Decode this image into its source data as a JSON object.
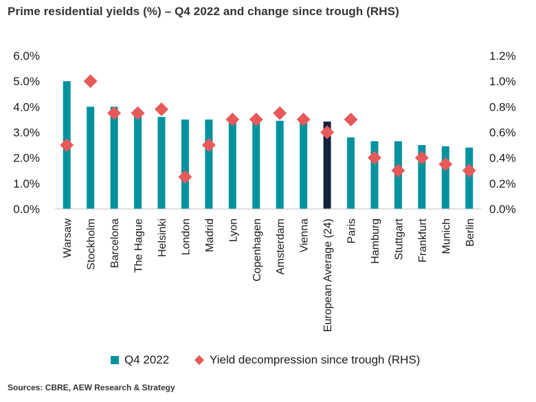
{
  "title": "Prime residential yields (%) – Q4 2022 and change since trough (RHS)",
  "source": "Sources: CBRE, AEW Research & Strategy",
  "colors": {
    "bar": "#00929F",
    "highlight": "#14233D",
    "marker": "#E85A5A"
  },
  "chart_data": {
    "type": "bar",
    "title": "Prime residential yields (%) – Q4 2022 and change since trough (RHS)",
    "categories": [
      "Warsaw",
      "Stockholm",
      "Barcelona",
      "The Hague",
      "Helsinki",
      "London",
      "Madrid",
      "Lyon",
      "Copenhagen",
      "Amsterdam",
      "Vienna",
      "European Average (24)",
      "Paris",
      "Hamburg",
      "Stuttgart",
      "Frankfurt",
      "Munich",
      "Berlin"
    ],
    "highlight_category": "European Average (24)",
    "series": [
      {
        "name": "Q4 2022",
        "type": "bar",
        "axis": "left",
        "values": [
          5.0,
          4.0,
          4.0,
          3.9,
          3.6,
          3.5,
          3.5,
          3.5,
          3.5,
          3.45,
          3.5,
          3.42,
          2.8,
          2.65,
          2.65,
          2.5,
          2.45,
          2.4
        ]
      },
      {
        "name": "Yield decompression since trough (RHS)",
        "type": "scatter",
        "marker": "diamond",
        "axis": "right",
        "values": [
          0.5,
          1.0,
          0.75,
          0.75,
          0.78,
          0.25,
          0.5,
          0.7,
          0.7,
          0.75,
          0.7,
          0.6,
          0.7,
          0.4,
          0.3,
          0.4,
          0.35,
          0.3
        ]
      }
    ],
    "yaxis_left": {
      "min": 0,
      "max": 6,
      "ticks": [
        "0.0%",
        "1.0%",
        "2.0%",
        "3.0%",
        "4.0%",
        "5.0%",
        "6.0%"
      ]
    },
    "yaxis_right": {
      "min": 0,
      "max": 1.2,
      "ticks": [
        "0.0%",
        "0.2%",
        "0.4%",
        "0.6%",
        "0.8%",
        "1.0%",
        "1.2%"
      ]
    },
    "grid": false,
    "legend_position": "bottom"
  }
}
